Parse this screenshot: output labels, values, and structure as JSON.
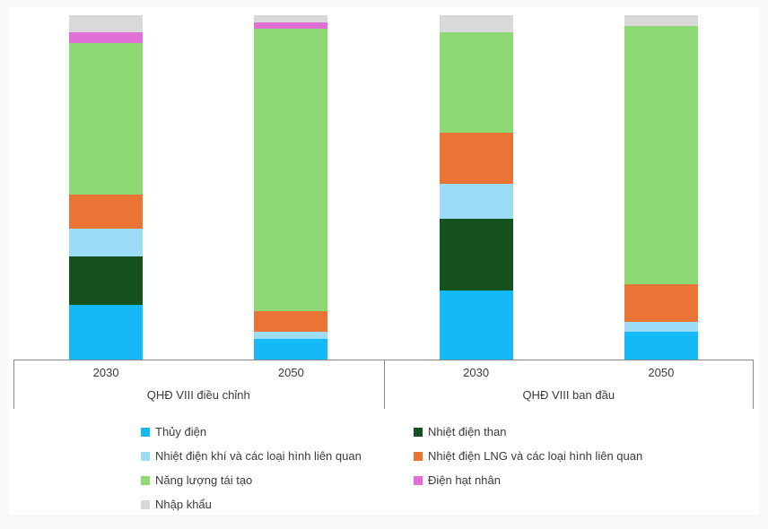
{
  "chart_data": {
    "type": "bar",
    "subtype": "100-percent-stacked-column",
    "title": "",
    "xlabel": "",
    "ylabel": "",
    "ylim": [
      0,
      100
    ],
    "grid": false,
    "legend_position": "bottom",
    "axis_color": "#898989",
    "groups": [
      {
        "label": "QHĐ VIII điều chỉnh",
        "categories": [
          "2030",
          "2050"
        ]
      },
      {
        "label": "QHĐ VIII ban đầu",
        "categories": [
          "2030",
          "2050"
        ]
      }
    ],
    "stack_order": "first series at bottom of each column",
    "series": [
      {
        "name": "Thủy điện",
        "color": "#14B9F5",
        "values": [
          16,
          6,
          20,
          8
        ]
      },
      {
        "name": "Nhiệt điện than",
        "color": "#15521F",
        "values": [
          14,
          0,
          21,
          0
        ]
      },
      {
        "name": "Nhiệt điện khí và các loại hình liên quan",
        "color": "#9DDCF7",
        "values": [
          8,
          2,
          10,
          3
        ]
      },
      {
        "name": "Nhiệt điện LNG và các loại hình liên quan",
        "color": "#E97436",
        "values": [
          10,
          6,
          15,
          11
        ]
      },
      {
        "name": "Năng lượng tái tạo",
        "color": "#8ED973",
        "values": [
          44,
          82,
          29,
          75
        ]
      },
      {
        "name": "Điện hạt nhân",
        "color": "#E06FD6",
        "values": [
          3,
          2,
          0,
          0
        ]
      },
      {
        "name": "Nhập khẩu",
        "color": "#D9D9D9",
        "values": [
          5,
          2,
          5,
          3
        ]
      }
    ]
  }
}
